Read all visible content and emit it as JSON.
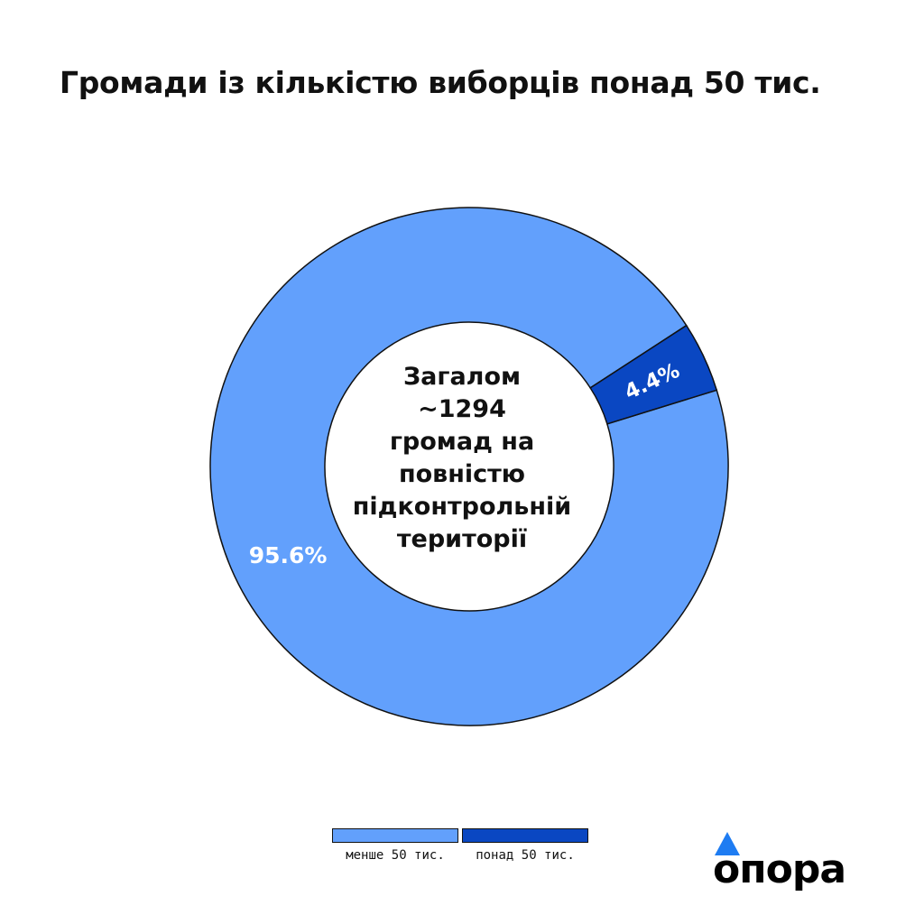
{
  "title": "Громади із кількістю виборців понад 50 тис.",
  "center_text": [
    "Загалом",
    "~1294",
    "громад на",
    "повністю",
    "підконтрольній",
    "території"
  ],
  "colors": {
    "less_than_50k": "#62a0fc",
    "more_than_50k": "#0a47c2",
    "outline": "#111111",
    "logo_triangle": "#1e7cf2"
  },
  "logo": {
    "text": "опора",
    "icon": "triangle-icon"
  },
  "chart_data": {
    "type": "pie",
    "donut": true,
    "title": "Громади із кількістю виборців понад 50 тис.",
    "slices": [
      {
        "name": "менше 50 тис.",
        "value": 95.6,
        "label": "95.6%"
      },
      {
        "name": "понад 50 тис.",
        "value": 4.4,
        "label": "4.4%"
      }
    ],
    "legend": {
      "placement": "bottom",
      "entries": [
        "менше 50 тис.",
        "понад 50 тис."
      ]
    }
  }
}
